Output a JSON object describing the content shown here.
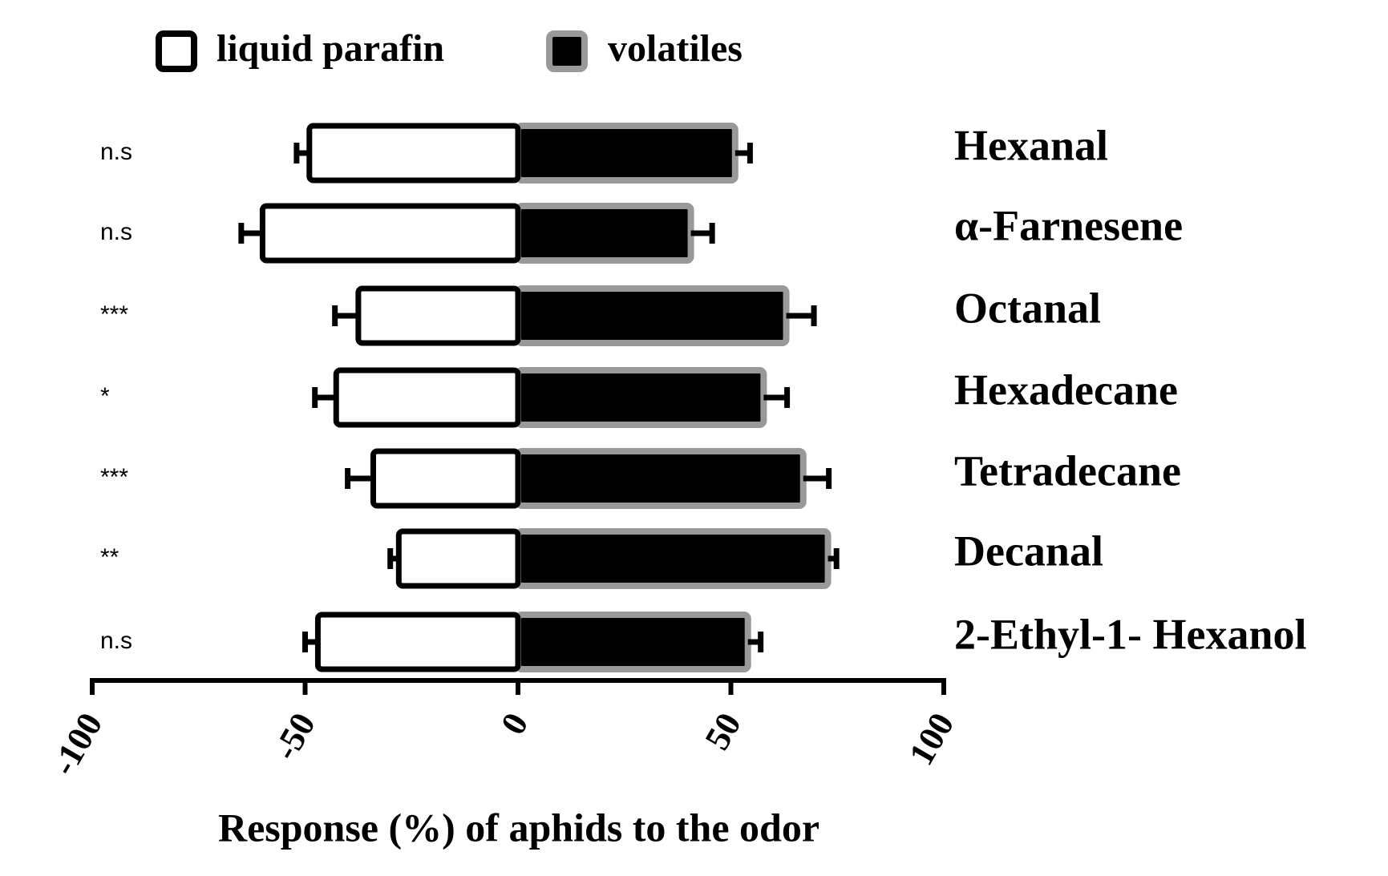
{
  "chart_data": {
    "type": "bar",
    "orientation": "horizontal",
    "xlabel": "Response (%)  of aphids to the odor",
    "categories": [
      "Hexanal",
      "α-Farnesene",
      "Octanal",
      "Hexadecane",
      "Tetradecane",
      "Decanal",
      "2-Ethyl-1- Hexanol"
    ],
    "annotations": [
      "n.s",
      "n.s",
      "***",
      "*",
      "***",
      "**",
      "n.s"
    ],
    "series": [
      {
        "name": "liquid parafin",
        "color": "#ffffff",
        "edgecolor": "#000000",
        "values": [
          -49,
          -60,
          -37.5,
          -42.7,
          -34,
          -28,
          -47
        ],
        "errors": [
          3,
          5,
          5.5,
          5,
          6,
          2,
          3
        ]
      },
      {
        "name": "volatiles",
        "color": "#000000",
        "edgecolor": "#999999",
        "values": [
          51,
          40.6,
          63,
          57.7,
          67,
          72.8,
          54
        ],
        "errors": [
          3.5,
          5,
          6.5,
          5.5,
          6,
          2,
          3
        ]
      }
    ],
    "xlim": [
      -100,
      100
    ],
    "xticks": [
      -100,
      -50,
      0,
      50,
      100
    ],
    "legend": "top-left",
    "grid": false
  }
}
